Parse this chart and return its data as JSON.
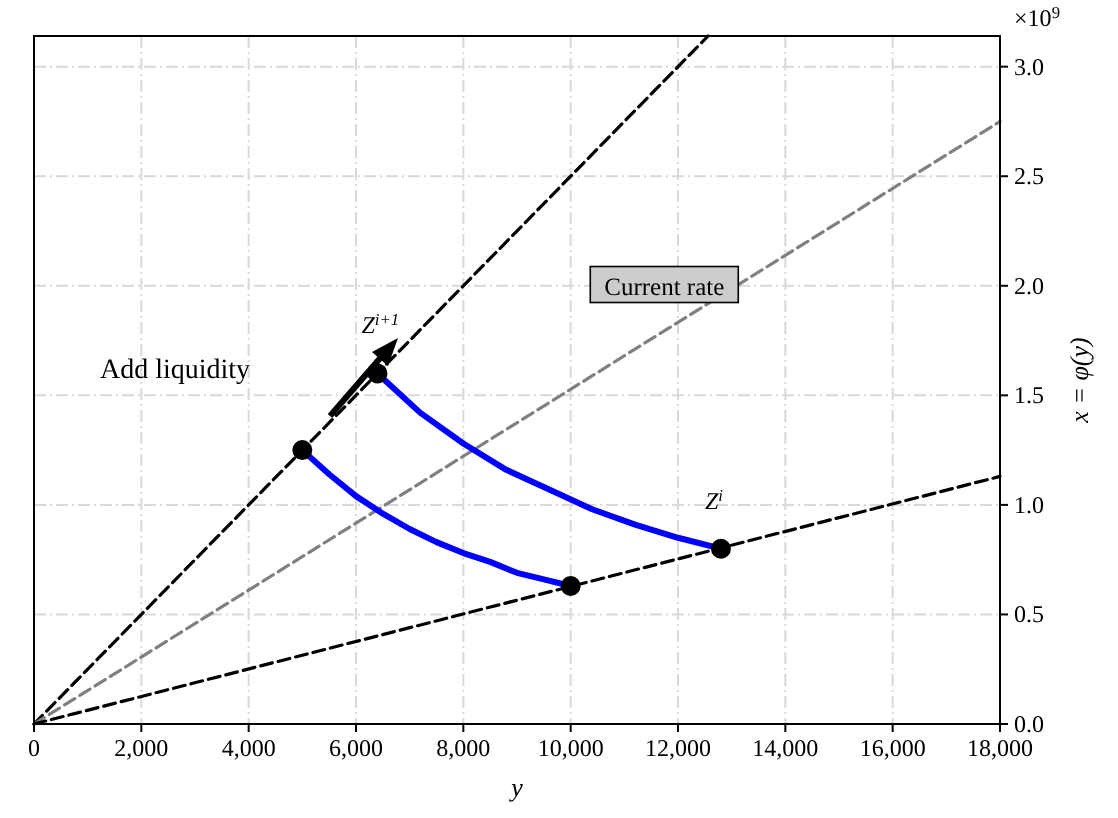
{
  "chart_data": {
    "type": "line",
    "xlabel": "y",
    "ylabel": "x = φ(y)",
    "xlim": [
      0,
      18000
    ],
    "ylim": [
      0,
      3.14
    ],
    "xticks": [
      0,
      {
        "value": 2000,
        "label": "2,000"
      },
      {
        "value": 4000,
        "label": "4,000"
      },
      {
        "value": 6000,
        "label": "6,000"
      },
      {
        "value": 8000,
        "label": "8,000"
      },
      {
        "value": 10000,
        "label": "10,000"
      },
      {
        "value": 12000,
        "label": "12,000"
      },
      {
        "value": 14000,
        "label": "14,000"
      },
      {
        "value": 16000,
        "label": "16,000"
      },
      {
        "value": 18000,
        "label": "18,000"
      }
    ],
    "yticks": [
      {
        "value": 0,
        "label": "0.0"
      },
      {
        "value": 0.5,
        "label": "0.5"
      },
      {
        "value": 1,
        "label": "1.0"
      },
      {
        "value": 1.5,
        "label": "1.5"
      },
      {
        "value": 2,
        "label": "2.0"
      },
      {
        "value": 2.5,
        "label": "2.5"
      },
      {
        "value": 3,
        "label": "3.0"
      }
    ],
    "grid": true,
    "series": [
      {
        "color": "#000000",
        "line_style": "dashed",
        "x": [
          0,
          12560
        ],
        "values": [
          0,
          3.14
        ]
      },
      {
        "name": "Current rate",
        "color": "#808080",
        "line_style": "dashed",
        "x": [
          0,
          18000
        ],
        "values": [
          0,
          2.75
        ]
      },
      {
        "color": "#000000",
        "line_style": "dashed",
        "x": [
          0,
          18000
        ],
        "values": [
          0,
          1.13
        ]
      },
      {
        "color": "#0000ff",
        "line_style": "solid",
        "x": [
          5000,
          5500,
          6000,
          6500,
          7000,
          7500,
          8000,
          8500,
          9000,
          9500,
          10000
        ],
        "values": [
          1.25,
          1.14,
          1.04,
          0.96,
          0.89,
          0.83,
          0.78,
          0.74,
          0.69,
          0.66,
          0.63
        ]
      },
      {
        "color": "#0000ff",
        "line_style": "solid",
        "x": [
          6400,
          7200,
          8000,
          8800,
          9600,
          10400,
          11200,
          12000,
          12800
        ],
        "values": [
          1.6,
          1.42,
          1.28,
          1.16,
          1.07,
          0.98,
          0.91,
          0.85,
          0.8
        ]
      },
      {
        "type": "scatter",
        "color": "#000000",
        "marker": "circle",
        "x": [
          5000,
          6400,
          10000,
          12800
        ],
        "values": [
          1.25,
          1.6,
          0.63,
          0.8
        ]
      }
    ],
    "annotations": [
      "×10$^{9}$",
      "Add liquidity",
      {
        "text": "Z$^{i+1}$",
        "x": 6400,
        "y": 1.6
      },
      {
        "text": "Z$^{i}$",
        "x": 12800,
        "y": 0.8
      }
    ]
  }
}
